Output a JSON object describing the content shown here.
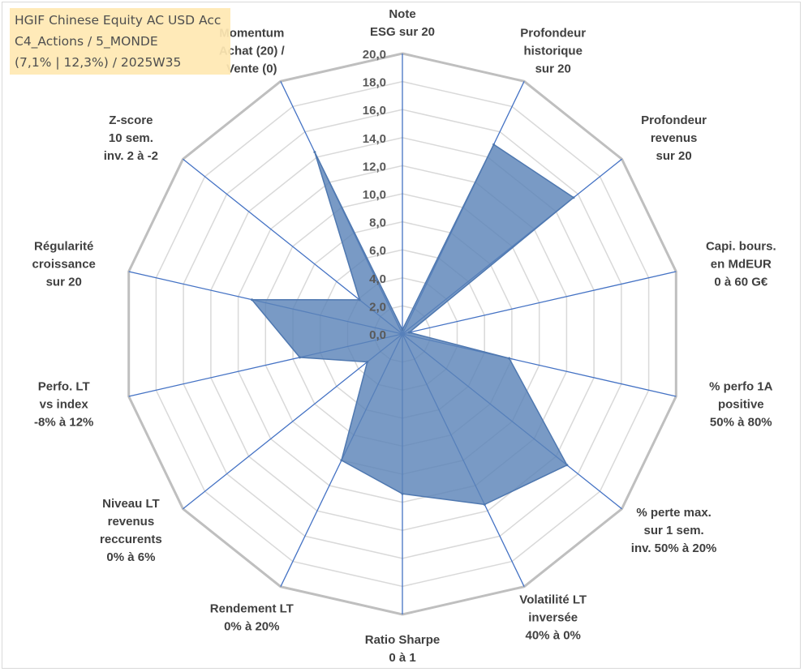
{
  "header": {
    "lines": [
      "HGIF Chinese Equity AC USD Acc",
      "C4_Actions / 5_MONDE",
      "(7,1% | 12,3%) / 2025W35"
    ]
  },
  "chart_data": {
    "type": "radar",
    "ylim": [
      0,
      20
    ],
    "ticks": [
      "0,0",
      "2,0",
      "4,0",
      "6,0",
      "8,0",
      "10,0",
      "12,0",
      "14,0",
      "16,0",
      "18,0",
      "20,0"
    ],
    "axes": [
      {
        "label": [
          "Note",
          "ESG sur 20"
        ]
      },
      {
        "label": [
          "Profondeur",
          "historique",
          "sur 20"
        ]
      },
      {
        "label": [
          "Profondeur",
          "revenus",
          "sur 20"
        ]
      },
      {
        "label": [
          "Capi. bours.",
          "en MdEUR",
          "0 à 60 G€"
        ]
      },
      {
        "label": [
          "% perfo 1A",
          "positive",
          "50% à 80%"
        ]
      },
      {
        "label": [
          "% perte max.",
          "sur 1 sem.",
          "inv. 50% à 20%"
        ]
      },
      {
        "label": [
          "Volatilité LT",
          "inversée",
          "40% à 0%"
        ]
      },
      {
        "label": [
          "Ratio Sharpe",
          "0 à 1"
        ]
      },
      {
        "label": [
          "Rendement LT",
          "0% à 20%"
        ]
      },
      {
        "label": [
          "Niveau LT",
          "revenus",
          "reccurents",
          "0% à 6%"
        ]
      },
      {
        "label": [
          "Perfo. LT",
          "vs index",
          "-8% à 12%"
        ]
      },
      {
        "label": [
          "Régularité",
          "croissance",
          "sur 20"
        ]
      },
      {
        "label": [
          "Z-score",
          "10 sem.",
          "inv. 2 à -2"
        ]
      },
      {
        "label": [
          "Momentum",
          "Achat (20) /",
          "Vente (0)"
        ]
      }
    ],
    "series": [
      {
        "values": [
          0.3,
          15.0,
          15.6,
          0.5,
          7.8,
          15.0,
          13.5,
          11.4,
          10.0,
          3.2,
          7.5,
          11.0,
          3.9,
          14.4
        ]
      }
    ],
    "colors": {
      "fill": "#5b84b8",
      "stroke": "#4f78b0",
      "spoke": "#4472c4",
      "grid_minor": "#d9d9d9",
      "grid_major": "#bfbfbf"
    }
  }
}
